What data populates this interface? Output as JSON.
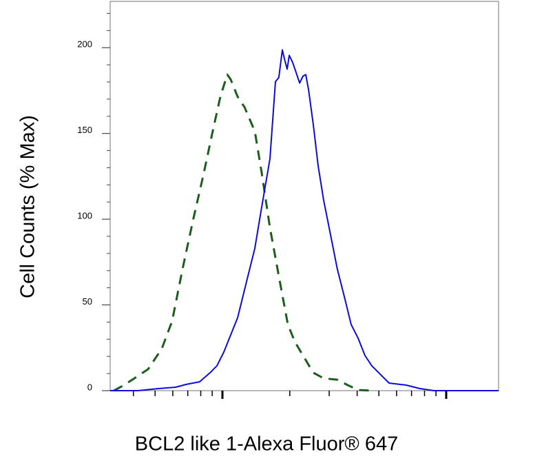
{
  "chart_data": {
    "type": "line",
    "xlabel": "BCL2 like 1-Alexa Fluor® 647",
    "ylabel": "Cell Counts (% Max)",
    "xscale": "log",
    "xlim": [
      31.5,
      1714
    ],
    "ylim": [
      0,
      227
    ],
    "xticks": [
      100,
      1000
    ],
    "xminor_ticks": [
      40,
      50,
      60,
      70,
      80,
      90,
      200,
      300,
      400,
      500,
      600,
      700,
      800,
      900
    ],
    "yticks": [
      0,
      50,
      100,
      150,
      200
    ],
    "yminor_ticks": [
      10,
      20,
      30,
      40,
      60,
      70,
      80,
      90,
      110,
      120,
      130,
      140,
      160,
      170,
      180,
      190,
      210,
      220
    ],
    "series": [
      {
        "color": "#1b5e1b",
        "dashed": true,
        "x": [
          32.7,
          36.3,
          40.4,
          46.5,
          53.6,
          59.6,
          66.3,
          73.8,
          82.0,
          91.2,
          97.9,
          105.1,
          108.9,
          116.9,
          125.4,
          139.5,
          149.7,
          163.0,
          178.7,
          196.0,
          210.4,
          229.1,
          254.6,
          283.3,
          326.3,
          363.1,
          403.9,
          465.1
        ],
        "values": [
          0,
          3.2,
          7.2,
          12.5,
          24.5,
          40.6,
          70.8,
          99,
          125.1,
          153.3,
          171.4,
          184.3,
          181.4,
          171.4,
          165.4,
          151.3,
          127.1,
          95.0,
          66.8,
          38.6,
          28.6,
          20.5,
          10.5,
          7.2,
          6.4,
          3.2,
          0.4,
          0
        ]
      },
      {
        "color": "#0a0ae0",
        "dashed": false,
        "x": [
          31.5,
          41.9,
          51.7,
          61.8,
          68.7,
          79.1,
          88.1,
          94.5,
          101.4,
          108.9,
          116.9,
          130.0,
          139.5,
          149.7,
          163.0,
          172.6,
          178.7,
          185.2,
          189.2,
          194.6,
          198.8,
          205.9,
          213.4,
          221.2,
          229.1,
          235.7,
          242.7,
          254.6,
          267.8,
          283.3,
          304.1,
          326.3,
          350.6,
          376.0,
          403.9,
          433.5,
          465.1,
          499.2,
          555.6,
          663.2,
          763.8,
          880.2,
          1714
        ],
        "values": [
          0,
          0,
          1.2,
          2.0,
          3.6,
          5.2,
          10.5,
          14.5,
          22.5,
          32.6,
          42.6,
          66.8,
          82.9,
          107.0,
          135.2,
          180.2,
          182.6,
          198.7,
          193.5,
          187.5,
          195.5,
          191.5,
          185.5,
          179.4,
          183.4,
          184.3,
          175.4,
          155.3,
          131.1,
          111.0,
          90.9,
          70.8,
          54.7,
          38.6,
          30.6,
          20.5,
          14.5,
          10.5,
          4.4,
          3.2,
          1.2,
          0,
          0
        ]
      }
    ]
  }
}
